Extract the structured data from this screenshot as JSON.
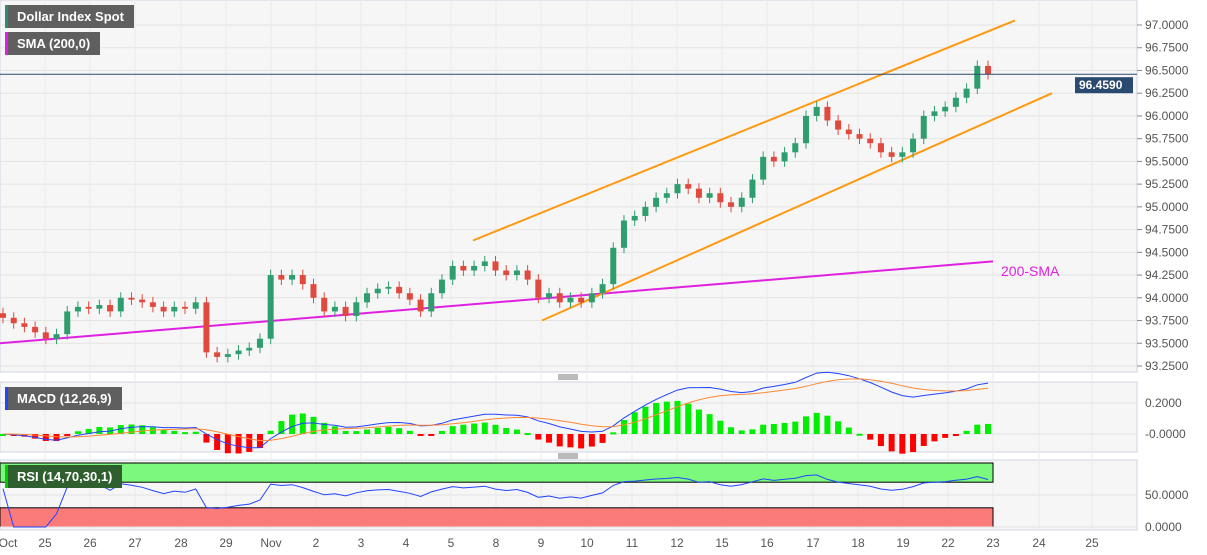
{
  "legend": {
    "symbol": "Dollar Index Spot",
    "sma": "SMA (200,0)",
    "macd": "MACD (12,26,9)",
    "rsi": "RSI (14,70,30,1)"
  },
  "annotation": {
    "sma_label": "200-SMA"
  },
  "colors": {
    "up": "#2e9e6e",
    "down": "#e0493e",
    "sma": "#e020e0",
    "channel": "#ff9911",
    "macd": "#2244ff",
    "signal": "#ff8833",
    "hist_up": "#00ee00",
    "hist_down": "#ff0000",
    "price_tag": "#2b4a6f"
  },
  "chart_data": {
    "type": "candlestick",
    "title": "Dollar Index Spot",
    "last_price": "96.4590",
    "y_ticks": [
      "97.0000",
      "96.7500",
      "96.5000",
      "96.2500",
      "96.0000",
      "95.7500",
      "95.5000",
      "95.2500",
      "95.0000",
      "94.7500",
      "94.5000",
      "94.2500",
      "94.0000",
      "93.7500",
      "93.5000",
      "93.2500"
    ],
    "y_tick_values": [
      97,
      96.75,
      96.5,
      96.25,
      96,
      95.75,
      95.5,
      95.25,
      95,
      94.75,
      94.5,
      94.25,
      94,
      93.75,
      93.5,
      93.25
    ],
    "x_ticks": [
      "Oct",
      "25",
      "26",
      "27",
      "28",
      "29",
      "Nov",
      "2",
      "3",
      "4",
      "5",
      "8",
      "9",
      "10",
      "11",
      "12",
      "15",
      "16",
      "17",
      "18",
      "19",
      "22",
      "23",
      "24",
      "25"
    ],
    "closes": [
      93.78,
      93.72,
      93.68,
      93.62,
      93.55,
      93.6,
      93.85,
      93.9,
      93.88,
      93.92,
      93.85,
      94.0,
      93.98,
      93.95,
      93.9,
      93.85,
      93.9,
      93.88,
      93.95,
      93.4,
      93.35,
      93.38,
      93.42,
      93.45,
      93.55,
      94.25,
      94.2,
      94.25,
      94.15,
      94.0,
      93.85,
      93.9,
      93.8,
      93.95,
      94.05,
      94.1,
      94.12,
      94.05,
      93.98,
      93.85,
      94.05,
      94.2,
      94.35,
      94.3,
      94.35,
      94.4,
      94.3,
      94.25,
      94.3,
      94.2,
      94.0,
      94.05,
      93.95,
      94.0,
      93.95,
      94.05,
      94.15,
      94.55,
      94.85,
      94.9,
      95.0,
      95.1,
      95.15,
      95.25,
      95.2,
      95.1,
      95.15,
      95.05,
      95.0,
      95.1,
      95.3,
      95.55,
      95.5,
      95.6,
      95.7,
      96.0,
      96.1,
      95.95,
      95.85,
      95.8,
      95.75,
      95.7,
      95.6,
      95.55,
      95.6,
      95.75,
      96.0,
      96.05,
      96.1,
      96.2,
      96.3,
      96.55,
      96.46
    ],
    "sma200": {
      "start": 93.5,
      "end": 94.4,
      "label": "200-SMA"
    },
    "channel": {
      "upper": [
        94.63,
        97.05
      ],
      "lower": [
        93.75,
        96.25
      ]
    },
    "macd": {
      "params": "12,26,9",
      "y_ticks": [
        "0.2000",
        "-0.0000"
      ],
      "y_tick_values": [
        0.2,
        0
      ]
    },
    "rsi": {
      "params": "14,70,30,1",
      "y_ticks": [
        "50.0000",
        "0.0000"
      ],
      "y_tick_values": [
        50,
        0
      ],
      "overbought": 70,
      "oversold": 30
    }
  }
}
